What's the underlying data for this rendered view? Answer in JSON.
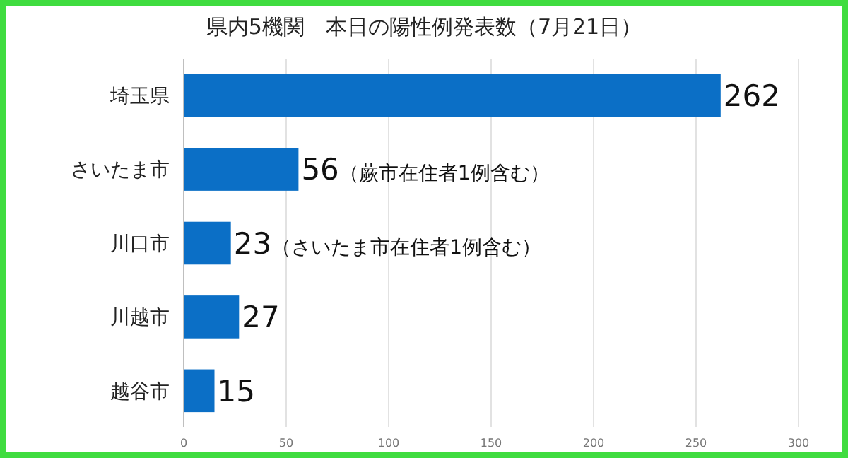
{
  "chart_data": {
    "type": "bar",
    "orientation": "horizontal",
    "title": "県内5機関　本日の陽性例発表数（7月21日）",
    "categories": [
      "埼玉県",
      "さいたま市",
      "川口市",
      "川越市",
      "越谷市"
    ],
    "values": [
      262,
      56,
      23,
      27,
      15
    ],
    "value_labels": [
      "262",
      "56（蕨市在住者1例含む）",
      "23（さいたま市在住者1例含む）",
      "27",
      "15"
    ],
    "color": "#0b6fc6",
    "xlim": [
      0,
      300
    ],
    "xticks": [
      0,
      50,
      100,
      150,
      200,
      250,
      300
    ],
    "grid": "x"
  }
}
